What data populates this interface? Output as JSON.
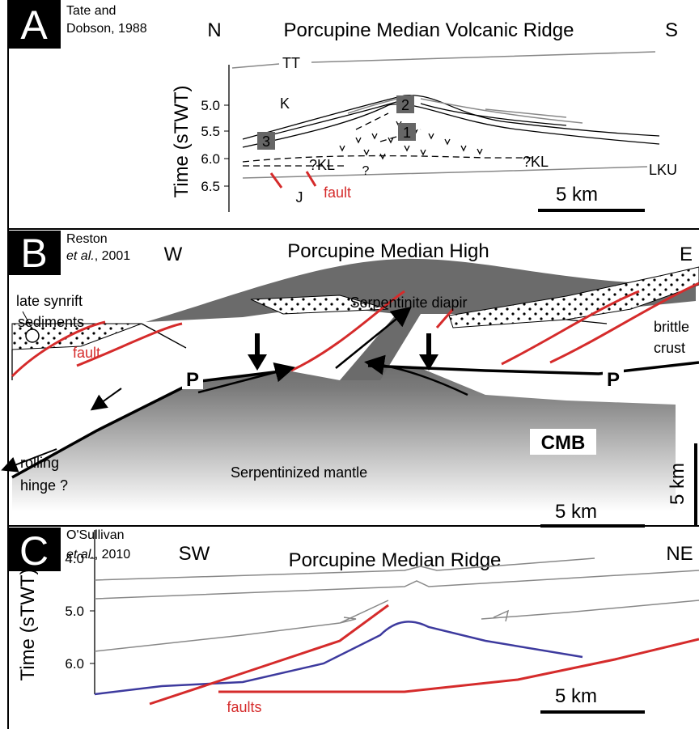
{
  "panels": [
    {
      "letter": "A",
      "citation": [
        "Tate and",
        "Dobson, 1988"
      ],
      "left": "N",
      "title": "Porcupine Median Volcanic Ridge",
      "right": "S",
      "axis_label": "Time (sTWT)",
      "ticks": [
        "5.0",
        "5.5",
        "6.0",
        "6.5"
      ],
      "labels": [
        "TT",
        "K",
        "2",
        "1",
        "3",
        "?KL",
        "?KL",
        "?",
        "LKU",
        "J",
        "fault"
      ],
      "scale": "5 km"
    },
    {
      "letter": "B",
      "citation": [
        "Reston",
        "et al.",
        ", 2001"
      ],
      "left": "W",
      "title": "Porcupine Median High",
      "right": "E",
      "labels": [
        "late synrift",
        "sediments",
        "Serpentinite diapir",
        "fault",
        "P",
        "P",
        "brittle",
        "crust",
        "rolling",
        "hinge ?",
        "Serpentinized mantle",
        "CMB"
      ],
      "scale": "5 km",
      "vertical_scale": "5 km"
    },
    {
      "letter": "C",
      "citation": [
        "O'Sullivan",
        "et al.",
        ", 2010"
      ],
      "left": "SW",
      "title": "Porcupine Median Ridge",
      "right": "NE",
      "axis_label": "Time (sTWT)",
      "ticks": [
        "4.0",
        "5.0",
        "6.0"
      ],
      "labels": [
        "faults"
      ],
      "scale": "5 km"
    }
  ]
}
